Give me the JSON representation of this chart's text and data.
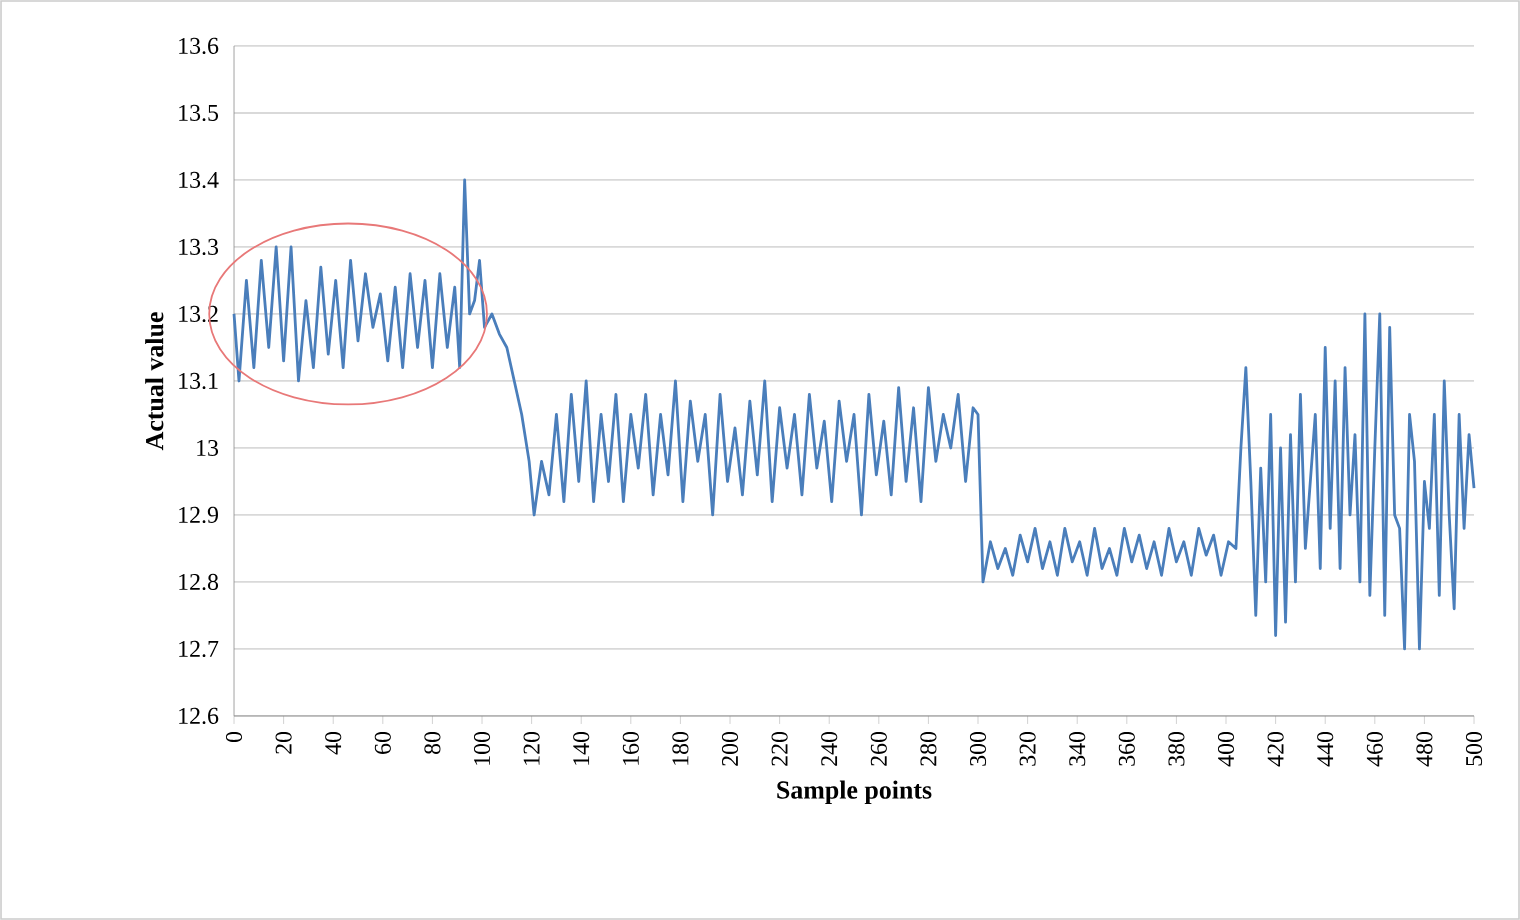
{
  "chart_data": {
    "type": "line",
    "xlabel": "Sample points",
    "ylabel": "Actual value",
    "xlim": [
      0,
      500
    ],
    "xticks": [
      0,
      20,
      40,
      60,
      80,
      100,
      120,
      140,
      160,
      180,
      200,
      220,
      240,
      260,
      280,
      300,
      320,
      340,
      360,
      380,
      400,
      420,
      440,
      460,
      480,
      500
    ],
    "ylim": [
      12.6,
      13.6
    ],
    "yticks": [
      12.6,
      12.7,
      12.8,
      12.9,
      13,
      13.1,
      13.2,
      13.3,
      13.4,
      13.5,
      13.6
    ],
    "grid": "y",
    "series": [
      {
        "color": "#4a7ebb",
        "x": [
          0,
          2,
          5,
          8,
          11,
          14,
          17,
          20,
          23,
          26,
          29,
          32,
          35,
          38,
          41,
          44,
          47,
          50,
          53,
          56,
          59,
          62,
          65,
          68,
          71,
          74,
          77,
          80,
          83,
          86,
          89,
          91,
          93,
          95,
          97,
          99,
          101,
          104,
          107,
          110,
          113,
          116,
          119,
          121,
          124,
          127,
          130,
          133,
          136,
          139,
          142,
          145,
          148,
          151,
          154,
          157,
          160,
          163,
          166,
          169,
          172,
          175,
          178,
          181,
          184,
          187,
          190,
          193,
          196,
          199,
          202,
          205,
          208,
          211,
          214,
          217,
          220,
          223,
          226,
          229,
          232,
          235,
          238,
          241,
          244,
          247,
          250,
          253,
          256,
          259,
          262,
          265,
          268,
          271,
          274,
          277,
          280,
          283,
          286,
          289,
          292,
          295,
          298,
          300,
          302,
          305,
          308,
          311,
          314,
          317,
          320,
          323,
          326,
          329,
          332,
          335,
          338,
          341,
          344,
          347,
          350,
          353,
          356,
          359,
          362,
          365,
          368,
          371,
          374,
          377,
          380,
          383,
          386,
          389,
          392,
          395,
          398,
          401,
          404,
          406,
          408,
          410,
          412,
          414,
          416,
          418,
          420,
          422,
          424,
          426,
          428,
          430,
          432,
          434,
          436,
          438,
          440,
          442,
          444,
          446,
          448,
          450,
          452,
          454,
          456,
          458,
          460,
          462,
          464,
          466,
          468,
          470,
          472,
          474,
          476,
          478,
          480,
          482,
          484,
          486,
          488,
          490,
          492,
          494,
          496,
          498,
          500
        ],
        "values": [
          13.2,
          13.1,
          13.25,
          13.12,
          13.28,
          13.15,
          13.3,
          13.13,
          13.3,
          13.1,
          13.22,
          13.12,
          13.27,
          13.14,
          13.25,
          13.12,
          13.28,
          13.16,
          13.26,
          13.18,
          13.23,
          13.13,
          13.24,
          13.12,
          13.26,
          13.15,
          13.25,
          13.12,
          13.26,
          13.15,
          13.24,
          13.12,
          13.4,
          13.2,
          13.22,
          13.28,
          13.18,
          13.2,
          13.17,
          13.15,
          13.1,
          13.05,
          12.98,
          12.9,
          12.98,
          12.93,
          13.05,
          12.92,
          13.08,
          12.95,
          13.1,
          12.92,
          13.05,
          12.95,
          13.08,
          12.92,
          13.05,
          12.97,
          13.08,
          12.93,
          13.05,
          12.96,
          13.1,
          12.92,
          13.07,
          12.98,
          13.05,
          12.9,
          13.08,
          12.95,
          13.03,
          12.93,
          13.07,
          12.96,
          13.1,
          12.92,
          13.06,
          12.97,
          13.05,
          12.93,
          13.08,
          12.97,
          13.04,
          12.92,
          13.07,
          12.98,
          13.05,
          12.9,
          13.08,
          12.96,
          13.04,
          12.93,
          13.09,
          12.95,
          13.06,
          12.92,
          13.09,
          12.98,
          13.05,
          13.0,
          13.08,
          12.95,
          13.06,
          13.05,
          12.8,
          12.86,
          12.82,
          12.85,
          12.81,
          12.87,
          12.83,
          12.88,
          12.82,
          12.86,
          12.81,
          12.88,
          12.83,
          12.86,
          12.81,
          12.88,
          12.82,
          12.85,
          12.81,
          12.88,
          12.83,
          12.87,
          12.82,
          12.86,
          12.81,
          12.88,
          12.83,
          12.86,
          12.81,
          12.88,
          12.84,
          12.87,
          12.81,
          12.86,
          12.85,
          13.0,
          13.12,
          12.95,
          12.75,
          12.97,
          12.8,
          13.05,
          12.72,
          13.0,
          12.74,
          13.02,
          12.8,
          13.08,
          12.85,
          12.95,
          13.05,
          12.82,
          13.15,
          12.88,
          13.1,
          12.82,
          13.12,
          12.9,
          13.02,
          12.8,
          13.2,
          12.78,
          13.0,
          13.2,
          12.75,
          13.18,
          12.9,
          12.88,
          12.7,
          13.05,
          12.98,
          12.7,
          12.95,
          12.88,
          13.05,
          12.78,
          13.1,
          12.9,
          12.76,
          13.05,
          12.88,
          13.02,
          12.94
        ]
      }
    ]
  }
}
